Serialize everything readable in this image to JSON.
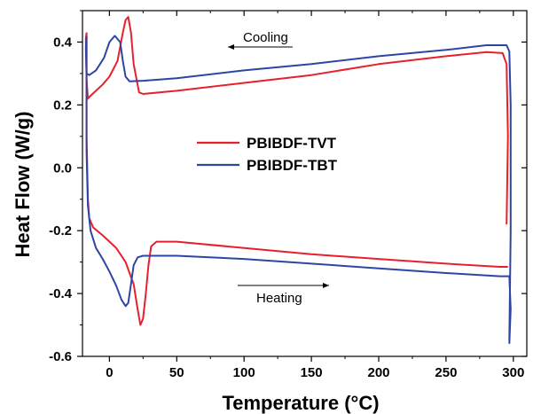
{
  "chart_data": {
    "type": "line",
    "xlabel": "Temperature (°C)",
    "ylabel": "Heat Flow (W/g)",
    "xlim": [
      -20,
      310
    ],
    "ylim": [
      -0.6,
      0.5
    ],
    "xticks": [
      0,
      50,
      100,
      150,
      200,
      250,
      300
    ],
    "yticks": [
      -0.6,
      -0.4,
      -0.2,
      0.0,
      0.2,
      0.4
    ],
    "ytick_labels": [
      "-0.6",
      "-0.4",
      "-0.2",
      "0.0",
      "0.2",
      "0.4"
    ],
    "grid": false,
    "legend_position": "center-left",
    "annotations": [
      {
        "text": "Cooling",
        "direction": "left",
        "x": 150,
        "y": 0.38
      },
      {
        "text": "Heating",
        "direction": "right",
        "x": 150,
        "y": -0.38
      }
    ],
    "series": [
      {
        "name": "PBIBDF-TVT",
        "color": "#e8202a",
        "cooling": [
          [
            295,
            -0.18
          ],
          [
            296,
            0.1
          ],
          [
            295,
            0.33
          ],
          [
            292,
            0.365
          ],
          [
            280,
            0.368
          ],
          [
            250,
            0.355
          ],
          [
            200,
            0.33
          ],
          [
            150,
            0.295
          ],
          [
            100,
            0.27
          ],
          [
            50,
            0.245
          ],
          [
            30,
            0.237
          ],
          [
            25,
            0.235
          ],
          [
            22,
            0.24
          ],
          [
            18,
            0.33
          ],
          [
            16,
            0.43
          ],
          [
            14,
            0.48
          ],
          [
            12,
            0.47
          ],
          [
            10,
            0.43
          ],
          [
            6,
            0.34
          ],
          [
            0,
            0.29
          ],
          [
            -5,
            0.265
          ],
          [
            -10,
            0.245
          ],
          [
            -15,
            0.225
          ],
          [
            -16,
            0.22
          ],
          [
            -17,
            0.28
          ],
          [
            -17.5,
            0.41
          ],
          [
            -17,
            0.43
          ]
        ],
        "heating": [
          [
            -17,
            0.43
          ],
          [
            -17,
            0.1
          ],
          [
            -16,
            -0.1
          ],
          [
            -15,
            -0.16
          ],
          [
            -12,
            -0.19
          ],
          [
            -5,
            -0.215
          ],
          [
            5,
            -0.255
          ],
          [
            12,
            -0.3
          ],
          [
            18,
            -0.37
          ],
          [
            21,
            -0.45
          ],
          [
            23,
            -0.5
          ],
          [
            25,
            -0.48
          ],
          [
            27,
            -0.4
          ],
          [
            29,
            -0.31
          ],
          [
            31,
            -0.25
          ],
          [
            35,
            -0.235
          ],
          [
            50,
            -0.235
          ],
          [
            100,
            -0.255
          ],
          [
            150,
            -0.275
          ],
          [
            200,
            -0.29
          ],
          [
            250,
            -0.305
          ],
          [
            290,
            -0.315
          ],
          [
            296,
            -0.315
          ]
        ]
      },
      {
        "name": "PBIBDF-TBT",
        "color": "#2f45a4",
        "cooling": [
          [
            297,
            -0.55
          ],
          [
            298,
            -0.2
          ],
          [
            298,
            0.2
          ],
          [
            297,
            0.37
          ],
          [
            295,
            0.39
          ],
          [
            280,
            0.39
          ],
          [
            250,
            0.375
          ],
          [
            200,
            0.355
          ],
          [
            150,
            0.33
          ],
          [
            100,
            0.31
          ],
          [
            50,
            0.285
          ],
          [
            25,
            0.277
          ],
          [
            15,
            0.275
          ],
          [
            12,
            0.29
          ],
          [
            10,
            0.34
          ],
          [
            8,
            0.4
          ],
          [
            4,
            0.42
          ],
          [
            0,
            0.4
          ],
          [
            -4,
            0.35
          ],
          [
            -10,
            0.31
          ],
          [
            -15,
            0.295
          ],
          [
            -17,
            0.3
          ],
          [
            -17.5,
            0.38
          ],
          [
            -17,
            0.42
          ]
        ],
        "heating": [
          [
            -17,
            0.42
          ],
          [
            -17,
            0.05
          ],
          [
            -16,
            -0.12
          ],
          [
            -14,
            -0.2
          ],
          [
            -10,
            -0.255
          ],
          [
            -5,
            -0.29
          ],
          [
            0,
            -0.33
          ],
          [
            5,
            -0.375
          ],
          [
            9,
            -0.42
          ],
          [
            12,
            -0.44
          ],
          [
            14,
            -0.43
          ],
          [
            16,
            -0.37
          ],
          [
            18,
            -0.31
          ],
          [
            21,
            -0.285
          ],
          [
            25,
            -0.28
          ],
          [
            50,
            -0.28
          ],
          [
            100,
            -0.29
          ],
          [
            150,
            -0.305
          ],
          [
            200,
            -0.32
          ],
          [
            250,
            -0.335
          ],
          [
            290,
            -0.345
          ],
          [
            297,
            -0.345
          ],
          [
            298,
            -0.45
          ],
          [
            297,
            -0.56
          ]
        ]
      }
    ]
  }
}
